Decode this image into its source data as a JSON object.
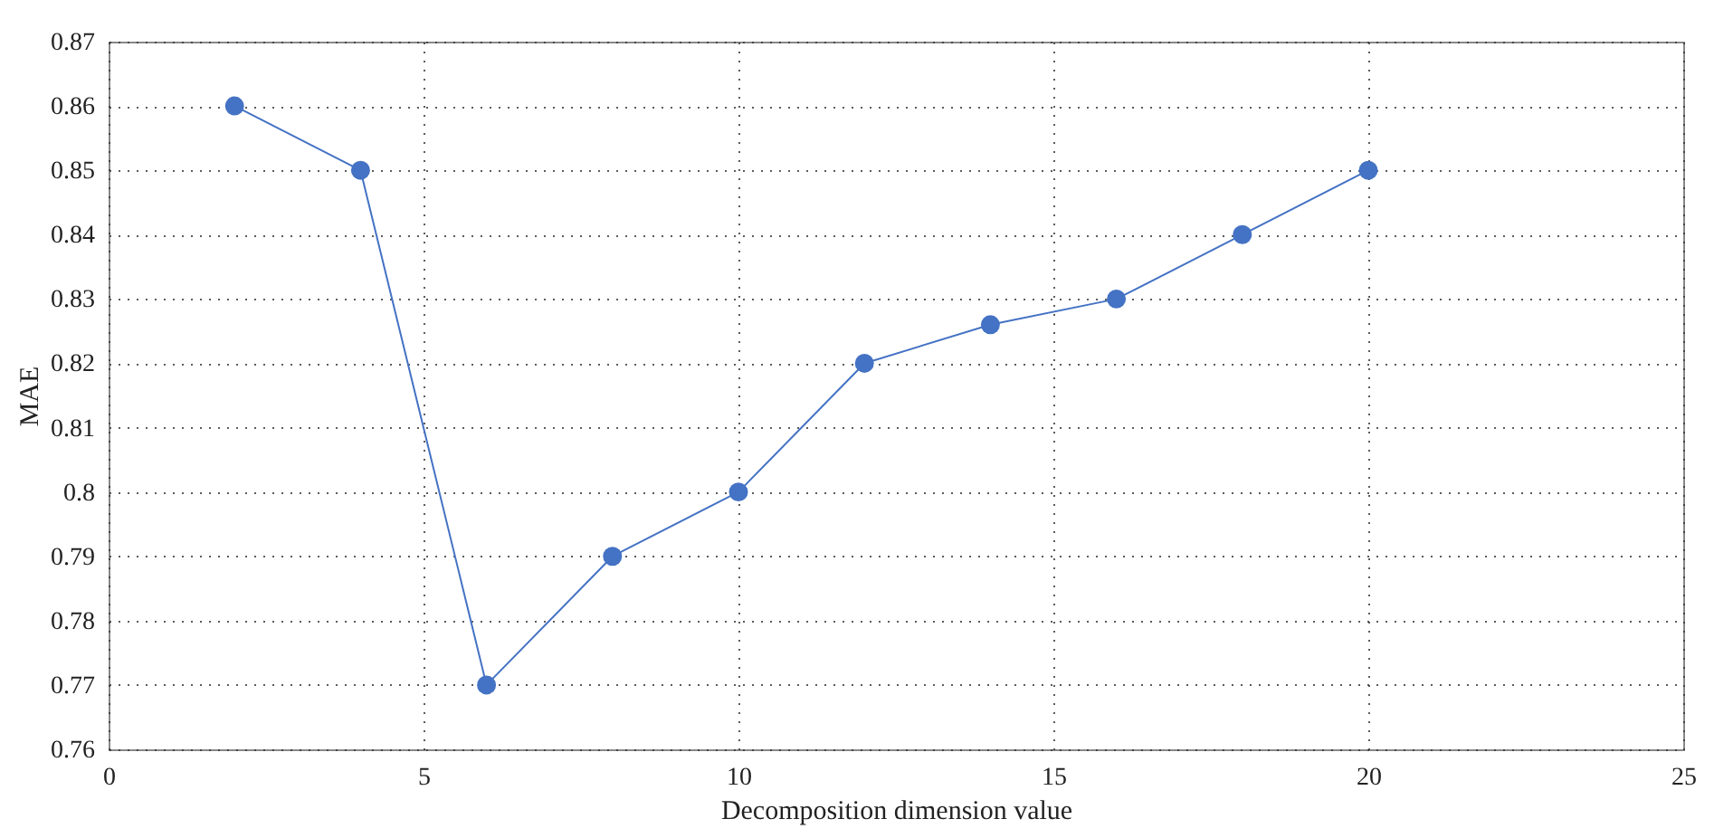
{
  "chart_data": {
    "type": "line",
    "xlabel": "Decomposition dimension value",
    "ylabel": "MAE",
    "x": [
      2,
      4,
      6,
      8,
      10,
      12,
      14,
      16,
      18,
      20
    ],
    "series": [
      {
        "color": "#4472c4",
        "values": [
          0.86,
          0.85,
          0.77,
          0.79,
          0.8,
          0.82,
          0.826,
          0.83,
          0.84,
          0.85
        ]
      }
    ],
    "xlim": [
      0,
      25
    ],
    "xticks": [
      0,
      5,
      10,
      15,
      20,
      25
    ],
    "ylim": [
      0.76,
      0.87
    ],
    "yticks": [
      0.76,
      0.77,
      0.78,
      0.79,
      0.8,
      0.81,
      0.82,
      0.83,
      0.84,
      0.85,
      0.86,
      0.87
    ],
    "grid": true,
    "marker": "circle",
    "line_style": "solid"
  }
}
